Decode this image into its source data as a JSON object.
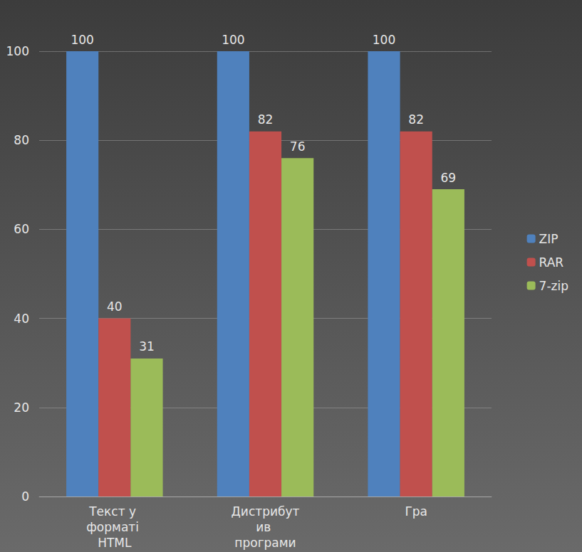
{
  "chart_data": {
    "type": "bar",
    "categories": [
      "Текст у форматі HTML",
      "Дистрибутив програми",
      "Гра"
    ],
    "series": [
      {
        "name": "ZIP",
        "color": "#4f81bd",
        "values": [
          100,
          100,
          100
        ]
      },
      {
        "name": "RAR",
        "color": "#c0504d",
        "values": [
          40,
          82,
          82
        ]
      },
      {
        "name": "7-zip",
        "color": "#9bbb59",
        "values": [
          31,
          76,
          69
        ]
      }
    ],
    "ylim": [
      0,
      100
    ],
    "yticks": [
      0,
      20,
      40,
      60,
      80,
      100
    ],
    "grid": true,
    "legend": "right",
    "data_labels": true
  }
}
